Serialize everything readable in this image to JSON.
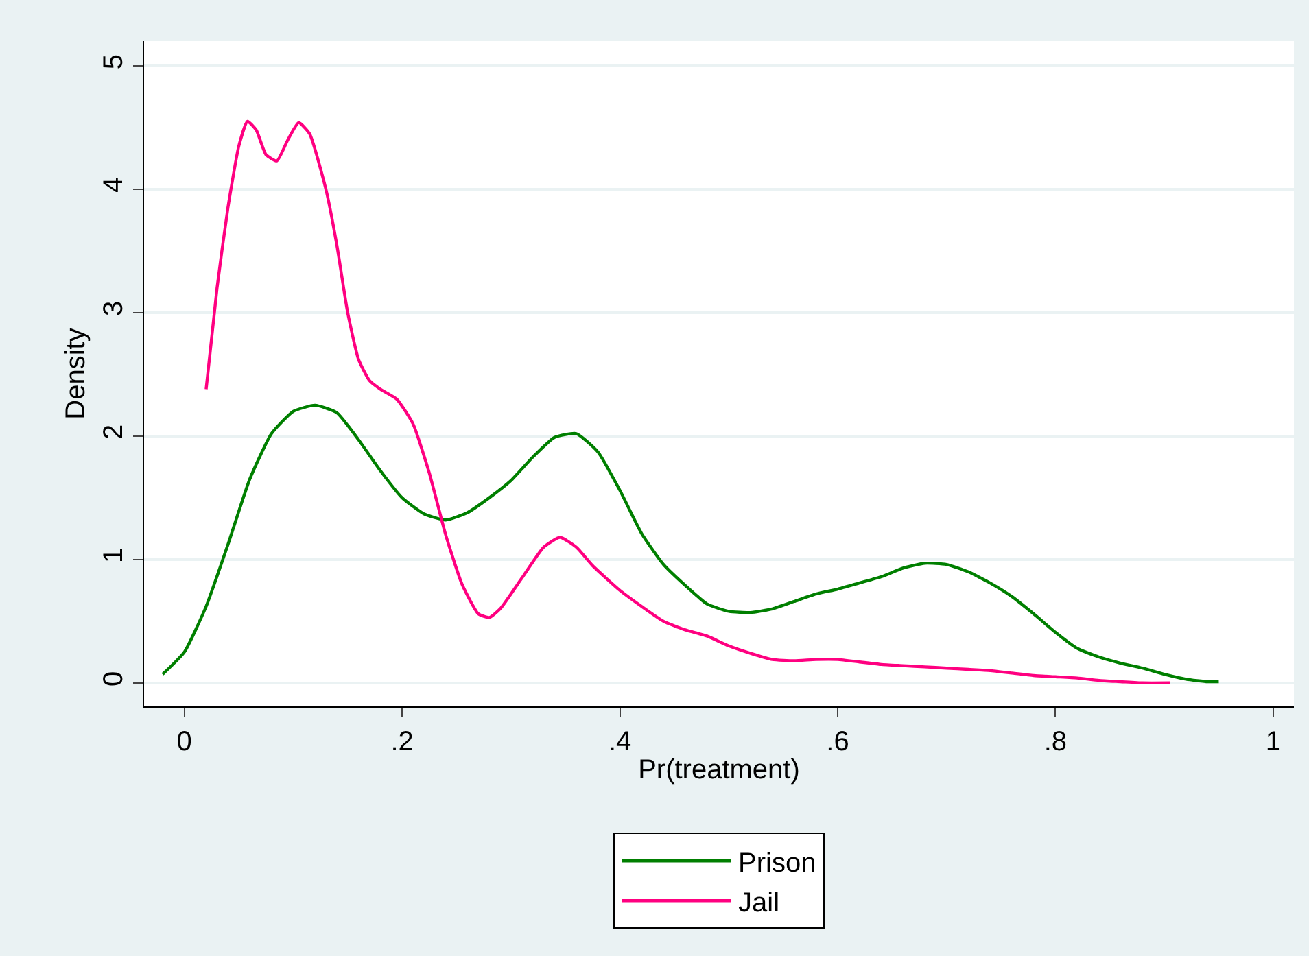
{
  "chart_data": {
    "type": "line",
    "xlabel": "Pr(treatment)",
    "ylabel": "Density",
    "xlim": [
      -0.037,
      1.019
    ],
    "ylim": [
      -0.19,
      5.2
    ],
    "xticks": [
      0,
      {
        "value": 0.2,
        "label": ".2"
      },
      {
        "value": 0.4,
        "label": ".4"
      },
      {
        "value": 0.6,
        "label": ".6"
      },
      {
        "value": 0.8,
        "label": ".8"
      },
      1
    ],
    "yticks": [
      0,
      1,
      2,
      3,
      4,
      5
    ],
    "grid": "y",
    "legend": "bottom",
    "marker": "none",
    "line_style": "solid",
    "series": [
      {
        "name": "Prison",
        "color": "#007f00",
        "x": [
          -0.02,
          0,
          0.02,
          0.04,
          0.06,
          0.08,
          0.1,
          0.12,
          0.14,
          0.16,
          0.18,
          0.2,
          0.22,
          0.24,
          0.26,
          0.28,
          0.3,
          0.32,
          0.34,
          0.36,
          0.38,
          0.4,
          0.42,
          0.44,
          0.46,
          0.48,
          0.5,
          0.52,
          0.54,
          0.56,
          0.58,
          0.6,
          0.62,
          0.64,
          0.66,
          0.68,
          0.7,
          0.72,
          0.74,
          0.76,
          0.78,
          0.8,
          0.82,
          0.84,
          0.86,
          0.88,
          0.9,
          0.92,
          0.94,
          0.95
        ],
        "values": [
          0.07,
          0.25,
          0.62,
          1.12,
          1.65,
          2.02,
          2.2,
          2.25,
          2.19,
          1.97,
          1.72,
          1.5,
          1.37,
          1.32,
          1.38,
          1.5,
          1.64,
          1.83,
          1.99,
          2.02,
          1.87,
          1.56,
          1.21,
          0.96,
          0.79,
          0.64,
          0.58,
          0.57,
          0.6,
          0.66,
          0.72,
          0.76,
          0.81,
          0.86,
          0.93,
          0.97,
          0.96,
          0.9,
          0.81,
          0.7,
          0.56,
          0.41,
          0.28,
          0.21,
          0.16,
          0.12,
          0.07,
          0.03,
          0.01,
          0.01
        ]
      },
      {
        "name": "Jail",
        "color": "#ff0080",
        "x": [
          0.02,
          0.03,
          0.04,
          0.05,
          0.058,
          0.066,
          0.075,
          0.085,
          0.095,
          0.105,
          0.115,
          0.13,
          0.14,
          0.15,
          0.16,
          0.17,
          0.18,
          0.195,
          0.21,
          0.225,
          0.24,
          0.255,
          0.27,
          0.28,
          0.29,
          0.31,
          0.33,
          0.345,
          0.36,
          0.375,
          0.4,
          0.42,
          0.44,
          0.46,
          0.48,
          0.5,
          0.52,
          0.54,
          0.56,
          0.58,
          0.6,
          0.62,
          0.64,
          0.66,
          0.68,
          0.7,
          0.72,
          0.74,
          0.76,
          0.78,
          0.8,
          0.82,
          0.84,
          0.86,
          0.88,
          0.905
        ],
        "values": [
          2.38,
          3.2,
          3.85,
          4.35,
          4.55,
          4.48,
          4.28,
          4.23,
          4.4,
          4.54,
          4.45,
          4.0,
          3.55,
          3.0,
          2.62,
          2.45,
          2.38,
          2.3,
          2.1,
          1.7,
          1.2,
          0.8,
          0.56,
          0.53,
          0.6,
          0.85,
          1.1,
          1.18,
          1.1,
          0.95,
          0.75,
          0.62,
          0.5,
          0.43,
          0.38,
          0.3,
          0.24,
          0.19,
          0.18,
          0.19,
          0.19,
          0.17,
          0.15,
          0.14,
          0.13,
          0.12,
          0.11,
          0.1,
          0.08,
          0.06,
          0.05,
          0.04,
          0.02,
          0.01,
          0.0,
          0.0
        ]
      }
    ]
  }
}
